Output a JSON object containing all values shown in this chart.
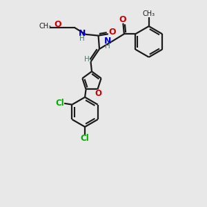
{
  "background_color": "#e8e8e8",
  "bond_color": "#1a1a1a",
  "oxygen_color": "#cc0000",
  "nitrogen_color": "#0000cc",
  "chlorine_color": "#00aa00",
  "hydrogen_color": "#4a7a6a",
  "line_width": 1.6,
  "figsize": [
    3.0,
    3.0
  ],
  "dpi": 100,
  "xlim": [
    0,
    10
  ],
  "ylim": [
    0,
    10
  ]
}
